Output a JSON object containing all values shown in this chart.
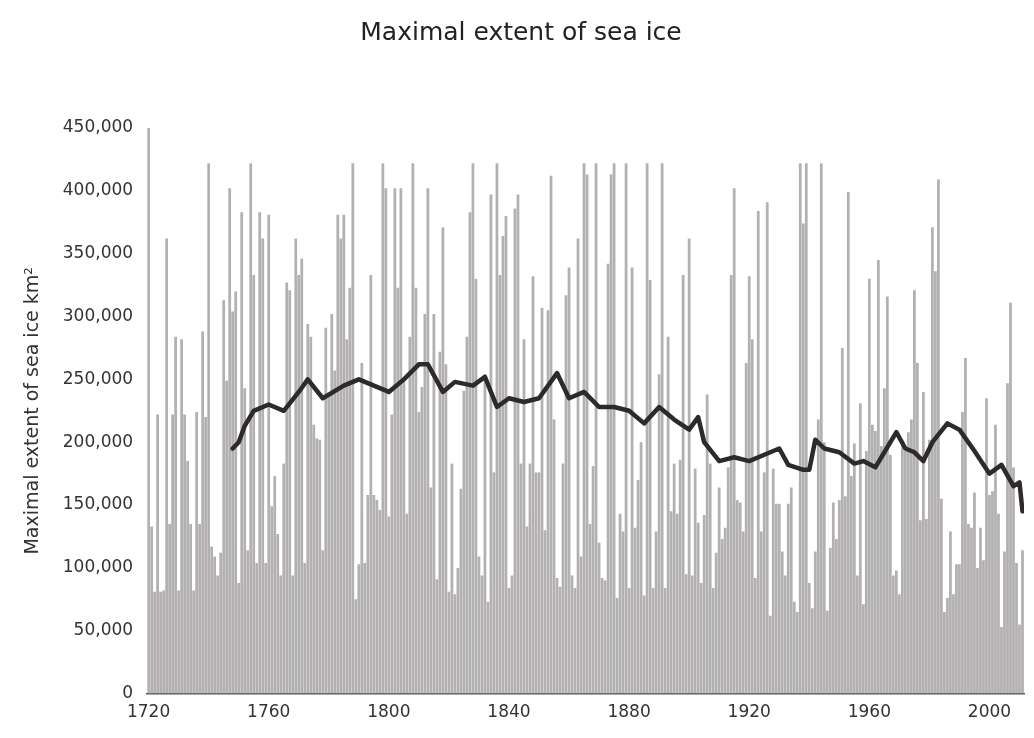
{
  "chart_data": {
    "type": "bar",
    "title": "Maximal extent of sea ice",
    "ylabel": "Maximal extent of sea ice km²",
    "xlim": [
      1719.5,
      2011.5
    ],
    "xticks": [
      1720,
      1760,
      1800,
      1840,
      1880,
      1920,
      1960,
      2000
    ],
    "ylim": [
      0,
      450000
    ],
    "yticks": [
      {
        "value": 0,
        "label": "0"
      },
      {
        "value": 50000,
        "label": "50,000"
      },
      {
        "value": 100000,
        "label": "100,000"
      },
      {
        "value": 150000,
        "label": "150,000"
      },
      {
        "value": 200000,
        "label": "200,000"
      },
      {
        "value": 250000,
        "label": "250,000"
      },
      {
        "value": 300000,
        "label": "300,000"
      },
      {
        "value": 350000,
        "label": "350,000"
      },
      {
        "value": 400000,
        "label": "400,000"
      },
      {
        "value": 450000,
        "label": "450,000"
      }
    ],
    "grid": false,
    "legend": false,
    "marker": "none",
    "series": [
      {
        "color": "#b3b0b2",
        "x": [
          1720,
          1721,
          1722,
          1723,
          1724,
          1725,
          1726,
          1727,
          1728,
          1729,
          1730,
          1731,
          1732,
          1733,
          1734,
          1735,
          1736,
          1737,
          1738,
          1739,
          1740,
          1741,
          1742,
          1743,
          1744,
          1745,
          1746,
          1747,
          1748,
          1749,
          1750,
          1751,
          1752,
          1753,
          1754,
          1755,
          1756,
          1757,
          1758,
          1759,
          1760,
          1761,
          1762,
          1763,
          1764,
          1765,
          1766,
          1767,
          1768,
          1769,
          1770,
          1771,
          1772,
          1773,
          1774,
          1775,
          1776,
          1777,
          1778,
          1779,
          1780,
          1781,
          1782,
          1783,
          1784,
          1785,
          1786,
          1787,
          1788,
          1789,
          1790,
          1791,
          1792,
          1793,
          1794,
          1795,
          1796,
          1797,
          1798,
          1799,
          1800,
          1801,
          1802,
          1803,
          1804,
          1805,
          1806,
          1807,
          1808,
          1809,
          1810,
          1811,
          1812,
          1813,
          1814,
          1815,
          1816,
          1817,
          1818,
          1819,
          1820,
          1821,
          1822,
          1823,
          1824,
          1825,
          1826,
          1827,
          1828,
          1829,
          1830,
          1831,
          1832,
          1833,
          1834,
          1835,
          1836,
          1837,
          1838,
          1839,
          1840,
          1841,
          1842,
          1843,
          1844,
          1845,
          1846,
          1847,
          1848,
          1849,
          1850,
          1851,
          1852,
          1853,
          1854,
          1855,
          1856,
          1857,
          1858,
          1859,
          1860,
          1861,
          1862,
          1863,
          1864,
          1865,
          1866,
          1867,
          1868,
          1869,
          1870,
          1871,
          1872,
          1873,
          1874,
          1875,
          1876,
          1877,
          1878,
          1879,
          1880,
          1881,
          1882,
          1883,
          1884,
          1885,
          1886,
          1887,
          1888,
          1889,
          1890,
          1891,
          1892,
          1893,
          1894,
          1895,
          1896,
          1897,
          1898,
          1899,
          1900,
          1901,
          1902,
          1903,
          1904,
          1905,
          1906,
          1907,
          1908,
          1909,
          1910,
          1911,
          1912,
          1913,
          1914,
          1915,
          1916,
          1917,
          1918,
          1919,
          1920,
          1921,
          1922,
          1923,
          1924,
          1925,
          1926,
          1927,
          1928,
          1929,
          1930,
          1931,
          1932,
          1933,
          1934,
          1935,
          1936,
          1937,
          1938,
          1939,
          1940,
          1941,
          1942,
          1943,
          1944,
          1945,
          1946,
          1947,
          1948,
          1949,
          1950,
          1951,
          1952,
          1953,
          1954,
          1955,
          1956,
          1957,
          1958,
          1959,
          1960,
          1961,
          1962,
          1963,
          1964,
          1965,
          1966,
          1967,
          1968,
          1969,
          1970,
          1971,
          1972,
          1973,
          1974,
          1975,
          1976,
          1977,
          1978,
          1979,
          1980,
          1981,
          1982,
          1983,
          1984,
          1985,
          1986,
          1987,
          1988,
          1989,
          1990,
          1991,
          1992,
          1993,
          1994,
          1995,
          1996,
          1997,
          1998,
          1999,
          2000,
          2001,
          2002,
          2003,
          2004,
          2005,
          2006,
          2007,
          2008,
          2009,
          2010,
          2011
        ],
        "values": [
          450000,
          133000,
          81000,
          222000,
          81000,
          82000,
          362000,
          135000,
          222000,
          284000,
          82000,
          282000,
          222000,
          185000,
          135000,
          82000,
          224000,
          135000,
          288000,
          220000,
          422000,
          117000,
          109000,
          94000,
          112000,
          313000,
          249000,
          402000,
          304000,
          320000,
          88000,
          383000,
          243000,
          114000,
          422000,
          333000,
          104000,
          383000,
          362000,
          104000,
          381000,
          149000,
          173000,
          127000,
          94000,
          183000,
          327000,
          321000,
          94000,
          362000,
          333000,
          346000,
          104000,
          294000,
          284000,
          214000,
          203000,
          202000,
          114000,
          291000,
          238000,
          302000,
          257000,
          381000,
          362000,
          381000,
          282000,
          323000,
          422000,
          75000,
          103000,
          263000,
          104000,
          158000,
          333000,
          158000,
          154000,
          146000,
          422000,
          402000,
          141000,
          222000,
          402000,
          323000,
          402000,
          251000,
          143000,
          284000,
          422000,
          323000,
          224000,
          244000,
          302000,
          402000,
          164000,
          302000,
          91000,
          272000,
          371000,
          262000,
          81000,
          183000,
          79000,
          100000,
          163000,
          241000,
          284000,
          383000,
          422000,
          330000,
          109000,
          94000,
          254000,
          73000,
          397000,
          176000,
          422000,
          333000,
          364000,
          380000,
          84000,
          94000,
          386000,
          397000,
          183000,
          282000,
          133000,
          183000,
          332000,
          176000,
          176000,
          307000,
          130000,
          305000,
          412000,
          218000,
          92000,
          85000,
          183000,
          317000,
          339000,
          94000,
          84000,
          362000,
          109000,
          422000,
          413000,
          135000,
          181000,
          422000,
          120000,
          92000,
          90000,
          342000,
          413000,
          422000,
          76000,
          143000,
          129000,
          422000,
          84000,
          339000,
          132000,
          170000,
          200000,
          78000,
          422000,
          329000,
          84000,
          129000,
          254000,
          422000,
          84000,
          284000,
          145000,
          183000,
          143000,
          186000,
          333000,
          95000,
          362000,
          94000,
          179000,
          136000,
          88000,
          142000,
          238000,
          183000,
          84000,
          112000,
          164000,
          123000,
          132000,
          180000,
          333000,
          402000,
          154000,
          152000,
          129000,
          263000,
          332000,
          282000,
          92000,
          384000,
          129000,
          176000,
          391000,
          62000,
          179000,
          151000,
          151000,
          113000,
          94000,
          151000,
          164000,
          73000,
          65000,
          422000,
          374000,
          422000,
          88000,
          68000,
          113000,
          218000,
          422000,
          200000,
          66000,
          116000,
          152000,
          123000,
          154000,
          275000,
          157000,
          399000,
          173000,
          199000,
          94000,
          231000,
          71000,
          193000,
          330000,
          214000,
          209000,
          345000,
          197000,
          243000,
          316000,
          190000,
          94000,
          98000,
          79000,
          199000,
          193000,
          208000,
          218000,
          321000,
          263000,
          138000,
          240000,
          139000,
          202000,
          371000,
          336000,
          409000,
          155000,
          65000,
          76000,
          129000,
          79000,
          103000,
          103000,
          224000,
          267000,
          135000,
          132000,
          160000,
          100000,
          132000,
          106000,
          235000,
          158000,
          161000,
          214000,
          143000,
          53000,
          113000,
          247000,
          311000,
          180000,
          104000,
          55000,
          114000
        ]
      },
      {
        "type": "line",
        "color": "#2d2a2b",
        "x": [
          1748,
          1750,
          1752,
          1755,
          1760,
          1765,
          1770,
          1773,
          1778,
          1785,
          1790,
          1795,
          1800,
          1805,
          1810,
          1813,
          1818,
          1822,
          1828,
          1832,
          1836,
          1840,
          1845,
          1850,
          1856,
          1860,
          1865,
          1870,
          1875,
          1880,
          1885,
          1890,
          1895,
          1900,
          1903,
          1905,
          1910,
          1915,
          1920,
          1925,
          1930,
          1933,
          1938,
          1940,
          1942,
          1945,
          1950,
          1955,
          1958,
          1962,
          1965,
          1969,
          1972,
          1975,
          1978,
          1981,
          1986,
          1990,
          1995,
          2000,
          2004,
          2008,
          2010,
          2011
        ],
        "values": [
          195000,
          200000,
          213000,
          225000,
          230000,
          225000,
          240000,
          250000,
          235000,
          245000,
          250000,
          245000,
          240000,
          250000,
          262000,
          262000,
          240000,
          248000,
          245000,
          252000,
          228000,
          235000,
          232000,
          235000,
          255000,
          235000,
          240000,
          228000,
          228000,
          225000,
          215000,
          228000,
          218000,
          210000,
          220000,
          200000,
          185000,
          188000,
          185000,
          190000,
          195000,
          182000,
          178000,
          178000,
          202000,
          195000,
          192000,
          183000,
          185000,
          180000,
          192000,
          208000,
          195000,
          192000,
          185000,
          200000,
          215000,
          210000,
          193000,
          175000,
          182000,
          165000,
          168000,
          145000
        ]
      }
    ]
  }
}
